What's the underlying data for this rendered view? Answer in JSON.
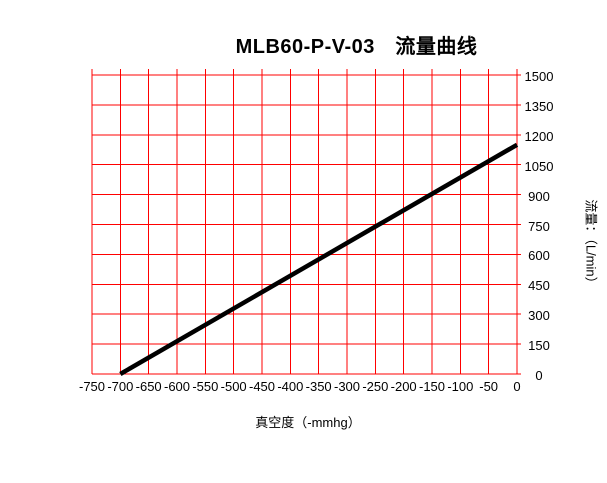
{
  "title": "MLB60-P-V-03　流量曲线",
  "chart_data": {
    "type": "line",
    "title": "MLB60-P-V-03　流量曲线",
    "xlabel": "真空度（-mmhg）",
    "ylabel": "流量：（L/min）",
    "xlim": [
      -750,
      0
    ],
    "ylim": [
      0,
      1500
    ],
    "x_ticks": [
      -750,
      -700,
      -650,
      -600,
      -550,
      -500,
      -450,
      -400,
      -350,
      -300,
      -250,
      -200,
      -150,
      -100,
      -50,
      0
    ],
    "y_ticks": [
      0,
      150,
      300,
      450,
      600,
      750,
      900,
      1050,
      1200,
      1350,
      1500
    ],
    "grid": true,
    "legend_position": "none",
    "grid_color": "#ff0000",
    "text_color": "#000000",
    "series": [
      {
        "name": "流量曲线",
        "color": "#000000",
        "points": [
          [
            -700,
            0
          ],
          [
            0,
            1150
          ]
        ]
      }
    ]
  }
}
